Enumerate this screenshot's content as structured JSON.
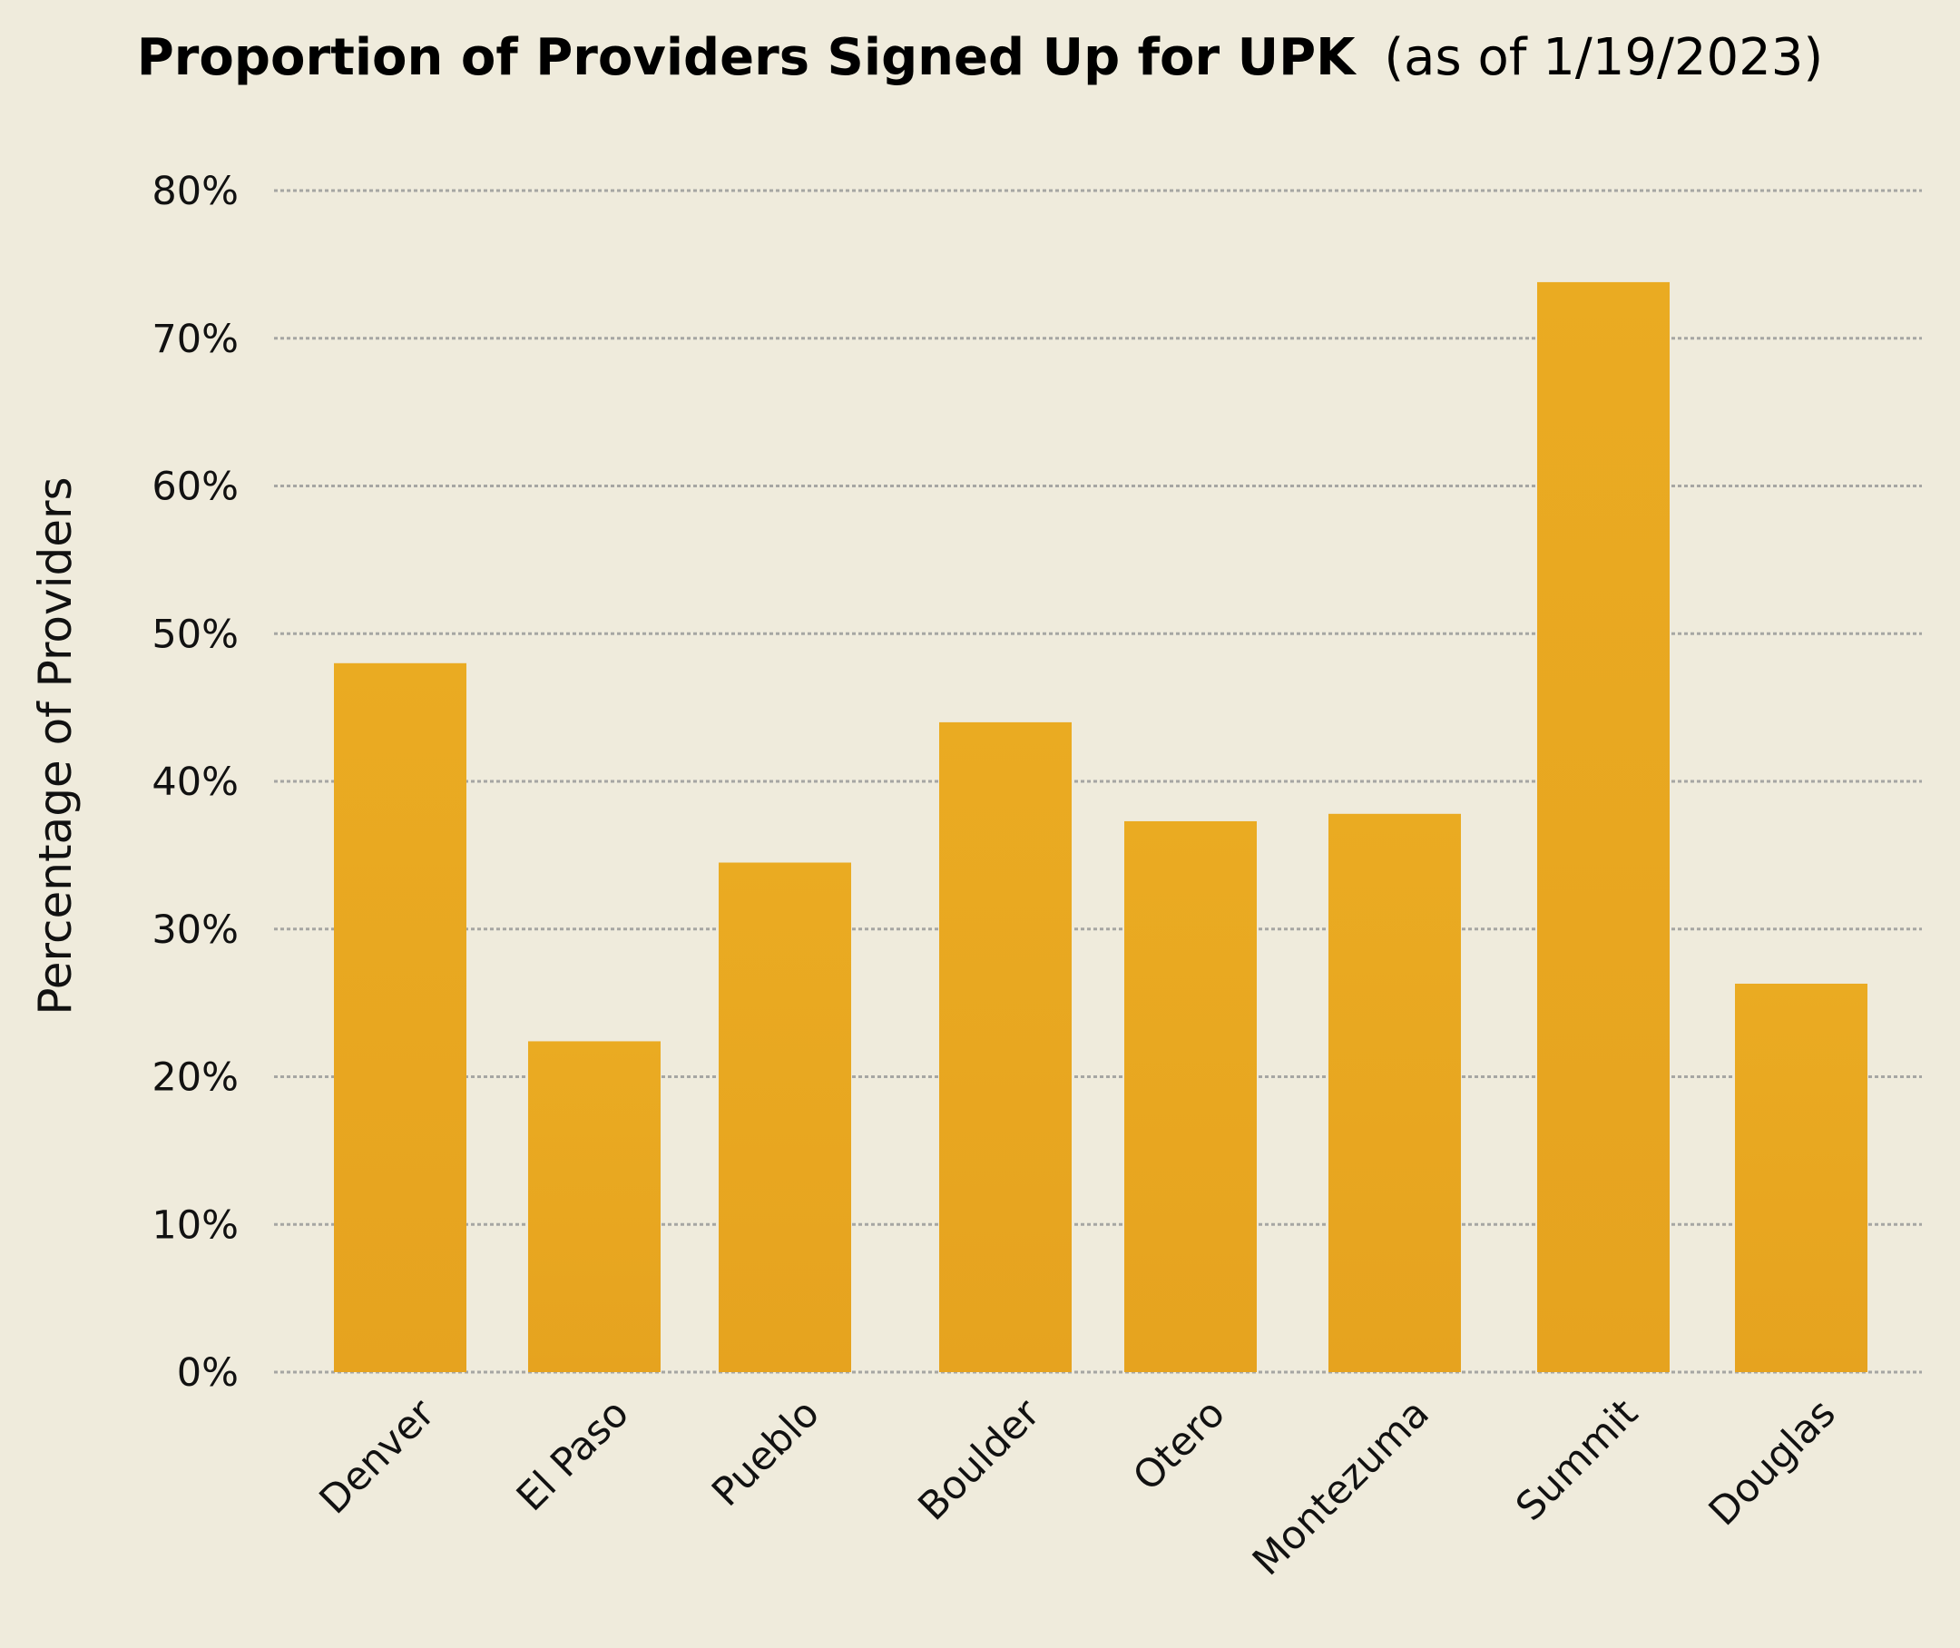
{
  "chart_data": {
    "type": "bar",
    "title": "Proportion of Providers Signed Up for UPK",
    "subtitle": "(as of 1/19/2023)",
    "xlabel": "",
    "ylabel": "Percentage of Providers",
    "categories": [
      "Denver",
      "El Paso",
      "Pueblo",
      "Boulder",
      "Otero",
      "Montezuma",
      "Summit",
      "Douglas"
    ],
    "values": [
      48.0,
      22.4,
      34.5,
      44.0,
      37.3,
      37.8,
      73.8,
      26.3
    ],
    "ylim": [
      0,
      80
    ],
    "yticks": [
      0,
      10,
      20,
      30,
      40,
      50,
      60,
      70,
      80
    ],
    "ytick_labels": [
      "0%",
      "10%",
      "20%",
      "30%",
      "40%",
      "50%",
      "60%",
      "70%",
      "80%"
    ],
    "grid": true,
    "legend": "none",
    "bar_color": "#eaab22",
    "bar_color_bottom": "#e6a31f",
    "background": "#efebdc"
  }
}
